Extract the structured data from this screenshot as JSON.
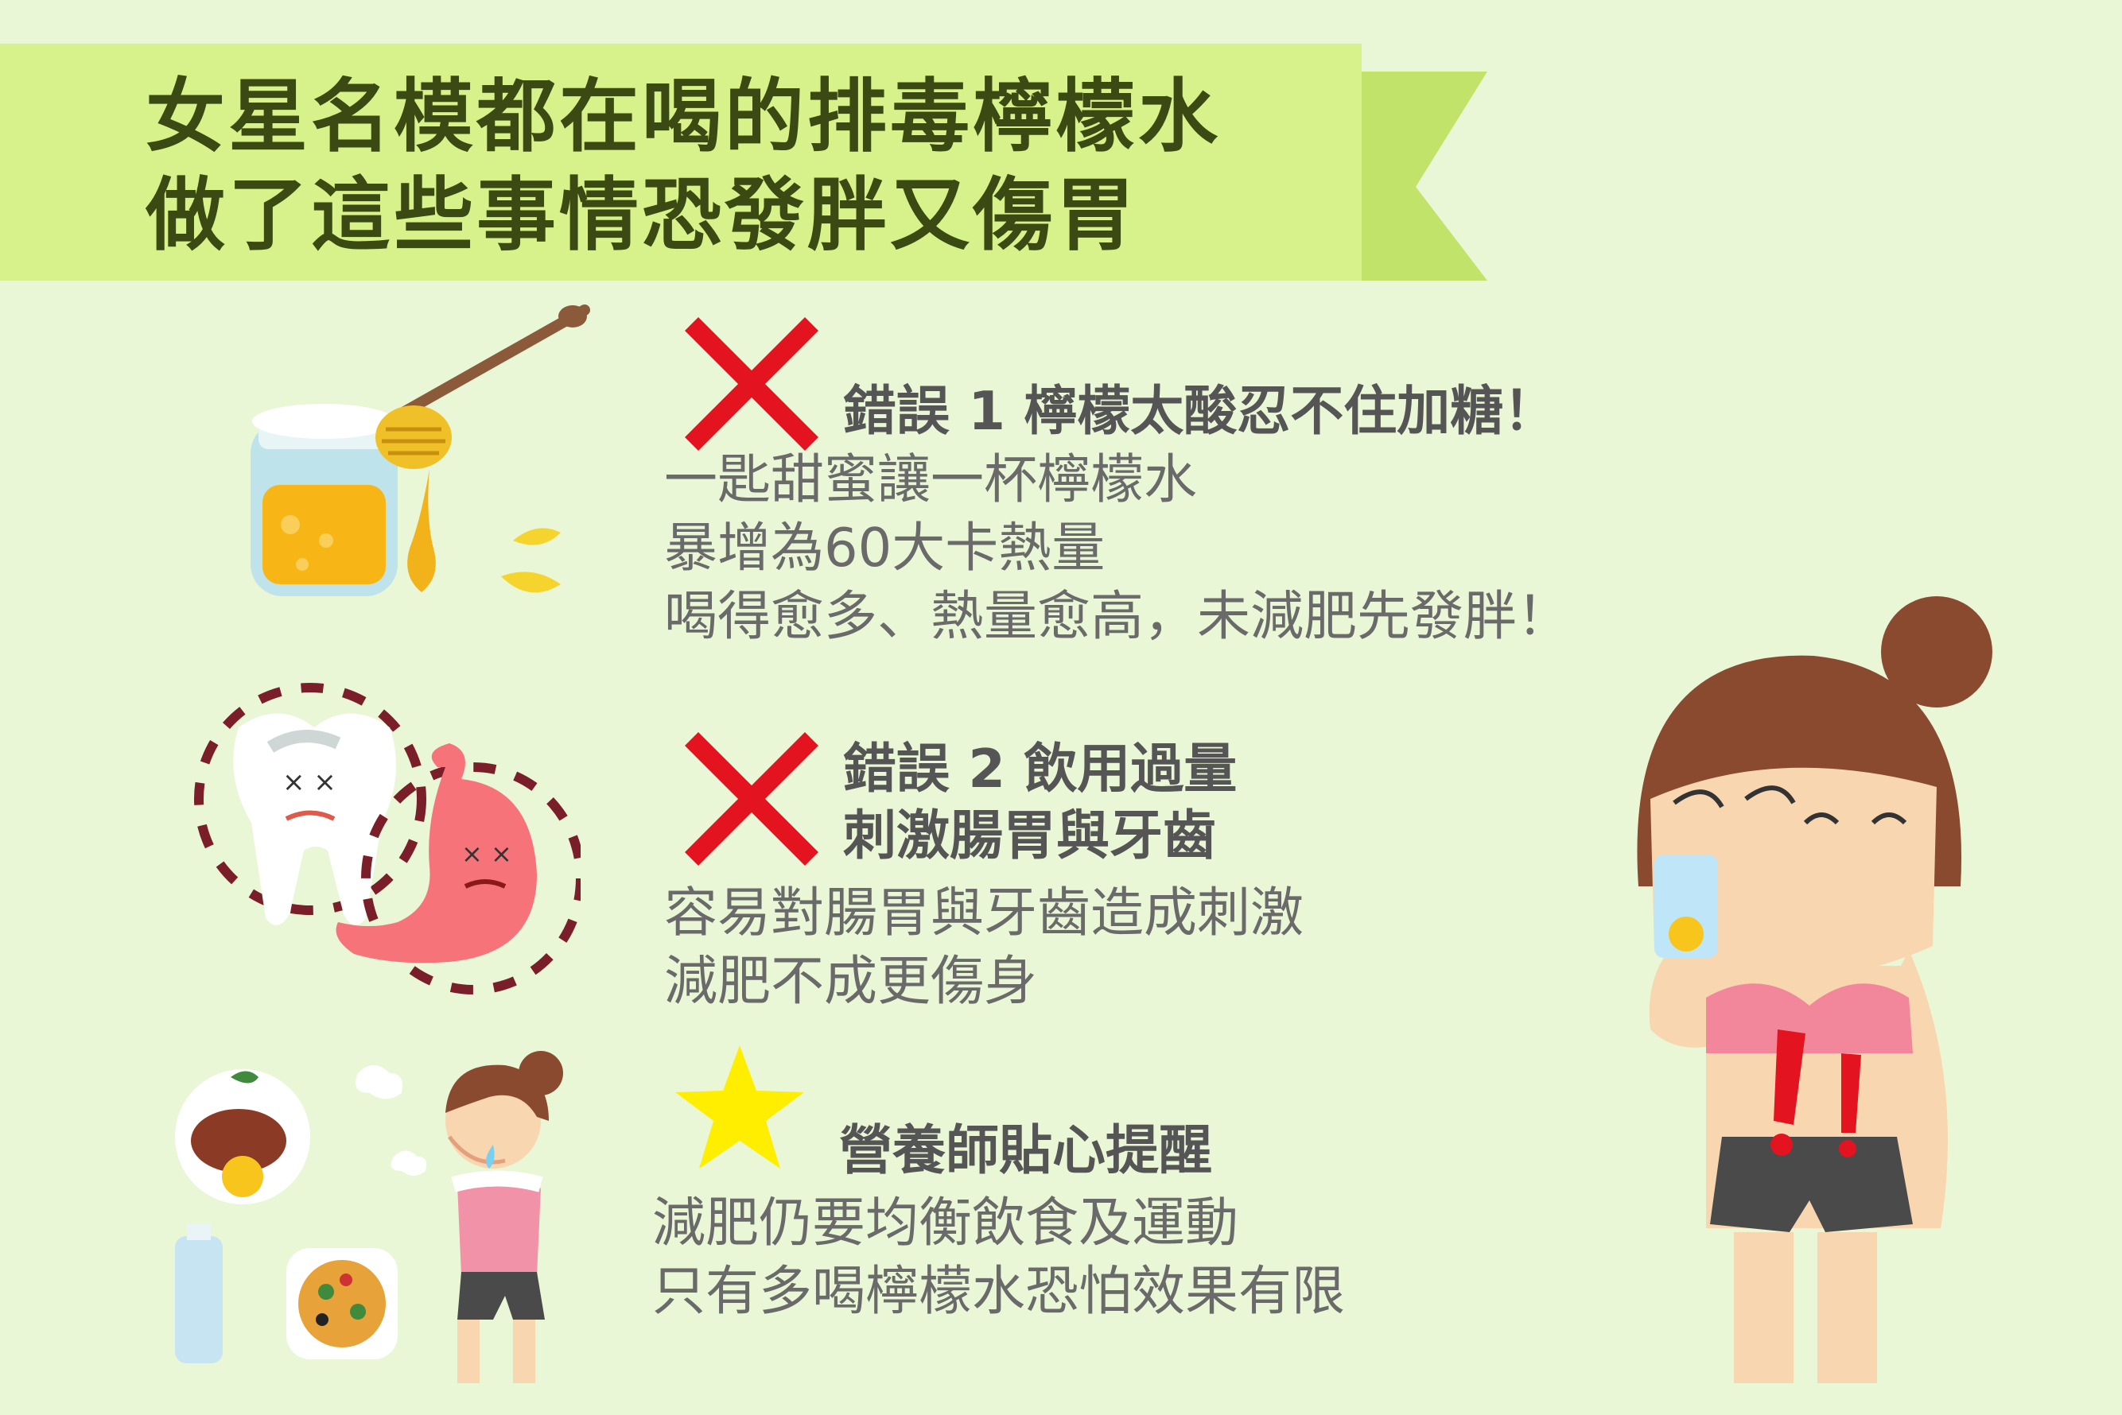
{
  "title": {
    "line1": "女星名模都在喝的排毒檸檬水",
    "line2": "做了這些事情恐發胖又傷胃"
  },
  "sections": [
    {
      "heading": "錯誤 1 檸檬太酸忍不住加糖！",
      "lines": [
        "一匙甜蜜讓一杯檸檬水",
        "暴增為60大卡熱量",
        "喝得愈多、熱量愈高，未減肥先發胖！"
      ]
    },
    {
      "heading_line1": "錯誤 2 飲用過量",
      "heading_line2": "刺激腸胃與牙齒",
      "lines": [
        "容易對腸胃與牙齒造成刺激",
        "減肥不成更傷身"
      ]
    },
    {
      "heading": "營養師貼心提醒",
      "lines": [
        "減肥仍要均衡飲食及運動",
        "只有多喝檸檬水恐怕效果有限"
      ]
    }
  ],
  "icons": {
    "wrong_1": "x-mark-icon",
    "wrong_2": "x-mark-icon",
    "tip": "star-icon"
  },
  "colors": {
    "background": "#eaf7d6",
    "banner": "#d7f28a",
    "banner_tail": "#c2e36a",
    "title_text": "#3a4a12",
    "cross": "#e3141f",
    "star": "#ffee00"
  }
}
